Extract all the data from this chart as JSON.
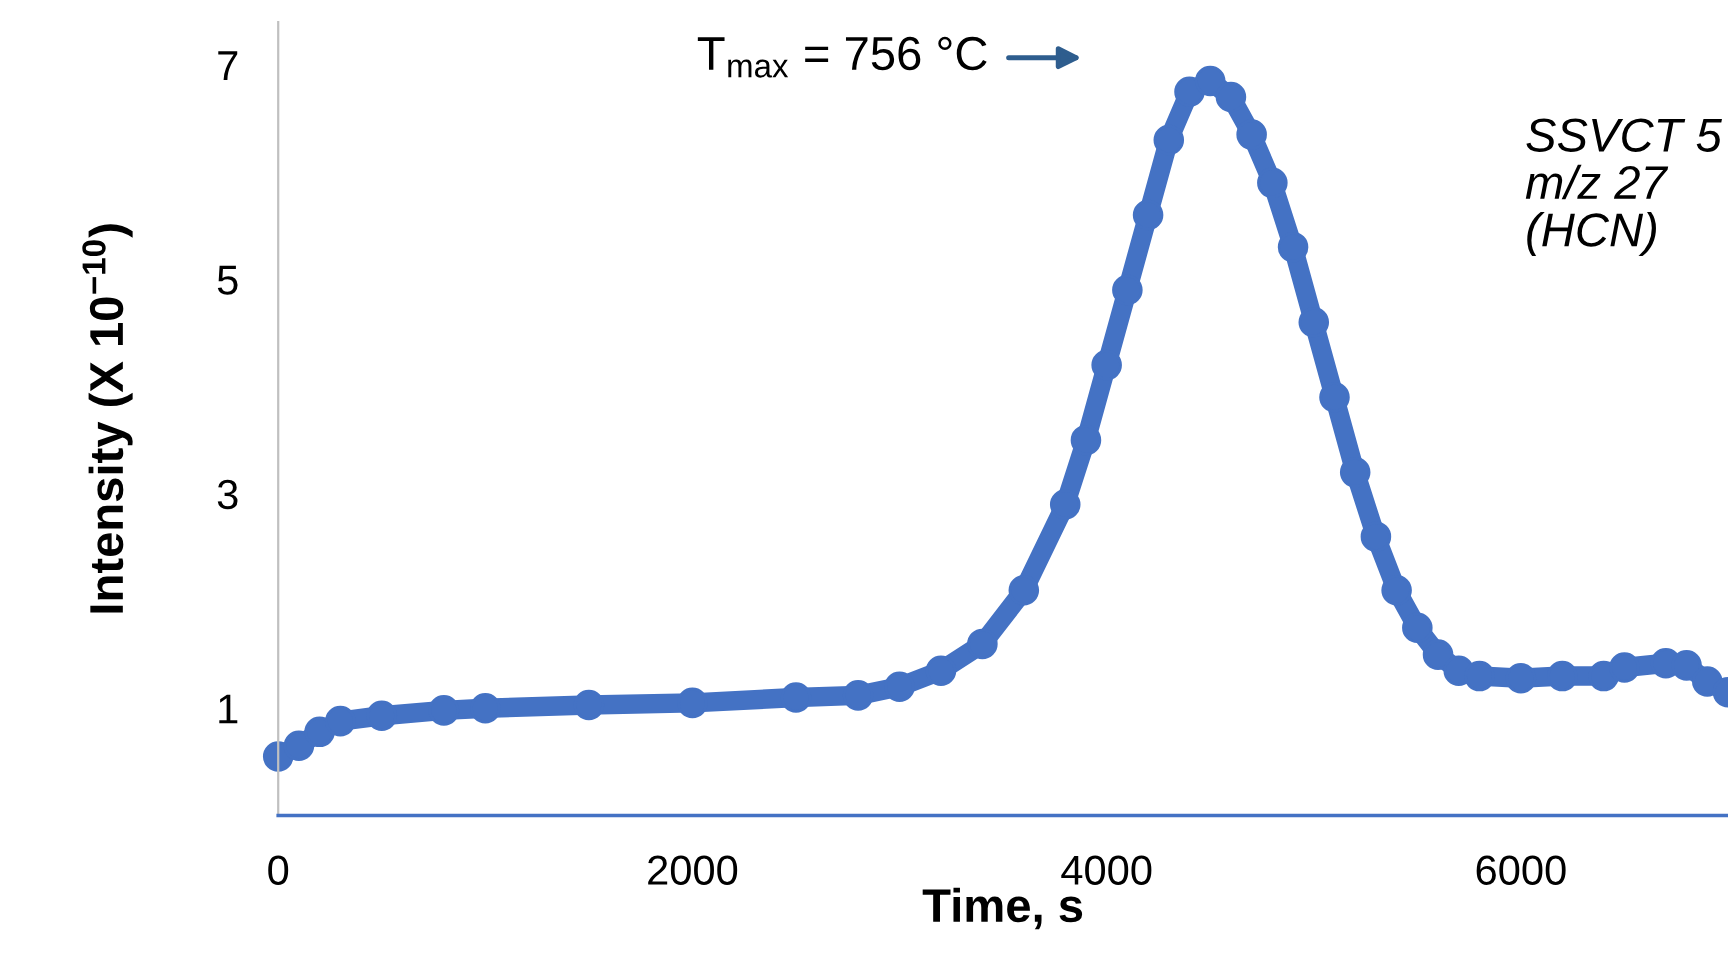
{
  "chart_data": {
    "type": "line",
    "xlabel": "Time, s",
    "ylabel": "Intensity (X 10$^{−10}$)",
    "xlim": [
      0,
      7000
    ],
    "ylim": [
      0,
      7.4
    ],
    "xticks": [
      0,
      2000,
      4000,
      6000
    ],
    "yticks": [
      1,
      3,
      5,
      7
    ],
    "grid": false,
    "legend": false,
    "marker": "circle",
    "annotations": [
      "T$_{max}$ = 756 °C",
      "SSVCT 5\nm/z 27\n(HCN)"
    ],
    "series": [
      {
        "color": "#4472c4",
        "x": [
          0,
          100,
          200,
          300,
          500,
          800,
          1000,
          1500,
          2000,
          2500,
          2800,
          3000,
          3200,
          3400,
          3600,
          3800,
          3900,
          4000,
          4100,
          4200,
          4300,
          4400,
          4500,
          4600,
          4700,
          4800,
          4900,
          5000,
          5100,
          5200,
          5300,
          5400,
          5500,
          5600,
          5700,
          5800,
          6000,
          6200,
          6400,
          6500,
          6700,
          6800,
          6900,
          7000
        ],
        "values": [
          0.55,
          0.65,
          0.78,
          0.88,
          0.93,
          0.98,
          1.0,
          1.03,
          1.05,
          1.1,
          1.12,
          1.2,
          1.35,
          1.6,
          2.1,
          2.9,
          3.5,
          4.2,
          4.9,
          5.6,
          6.3,
          6.75,
          6.85,
          6.7,
          6.35,
          5.9,
          5.3,
          4.6,
          3.9,
          3.2,
          2.6,
          2.1,
          1.75,
          1.5,
          1.35,
          1.3,
          1.28,
          1.3,
          1.3,
          1.38,
          1.42,
          1.4,
          1.25,
          1.15
        ]
      }
    ]
  }
}
